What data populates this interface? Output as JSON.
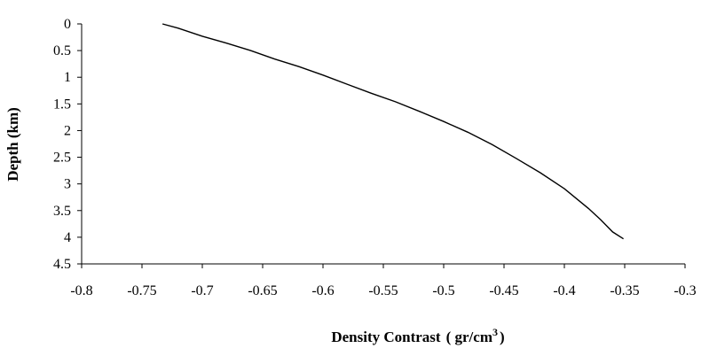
{
  "chart_data": {
    "type": "line",
    "title": "",
    "xlabel": "Density Contrast",
    "xlabel_units": "( gr/cm",
    "xlabel_units_sup": "3",
    "xlabel_units_close": ")",
    "ylabel": "Depth (km)",
    "xlim": [
      -0.8,
      -0.3
    ],
    "ylim": [
      0,
      4.5
    ],
    "y_inverted": true,
    "x_ticks": [
      -0.8,
      -0.75,
      -0.7,
      -0.65,
      -0.6,
      -0.55,
      -0.5,
      -0.45,
      -0.4,
      -0.35,
      -0.3
    ],
    "x_tick_labels": [
      "-0.8",
      "-0.75",
      "-0.7",
      "-0.65",
      "-0.6",
      "-0.55",
      "-0.5",
      "-0.45",
      "-0.4",
      "-0.35",
      "-0.3"
    ],
    "y_ticks": [
      0,
      0.5,
      1,
      1.5,
      2,
      2.5,
      3,
      3.5,
      4,
      4.5
    ],
    "y_tick_labels": [
      "0",
      "0.5",
      "1",
      "1.5",
      "2",
      "2.5",
      "3",
      "3.5",
      "4",
      "4.5"
    ],
    "grid": false,
    "legend": "none",
    "series": [
      {
        "x": [
          -0.733,
          -0.72,
          -0.7,
          -0.68,
          -0.66,
          -0.64,
          -0.62,
          -0.6,
          -0.58,
          -0.56,
          -0.54,
          -0.52,
          -0.5,
          -0.48,
          -0.46,
          -0.44,
          -0.42,
          -0.4,
          -0.38,
          -0.37,
          -0.36,
          -0.351
        ],
        "y": [
          0.0,
          0.08,
          0.23,
          0.36,
          0.5,
          0.66,
          0.8,
          0.96,
          1.13,
          1.3,
          1.46,
          1.64,
          1.83,
          2.03,
          2.26,
          2.52,
          2.79,
          3.09,
          3.46,
          3.67,
          3.9,
          4.03
        ],
        "color": "#000000"
      }
    ]
  }
}
